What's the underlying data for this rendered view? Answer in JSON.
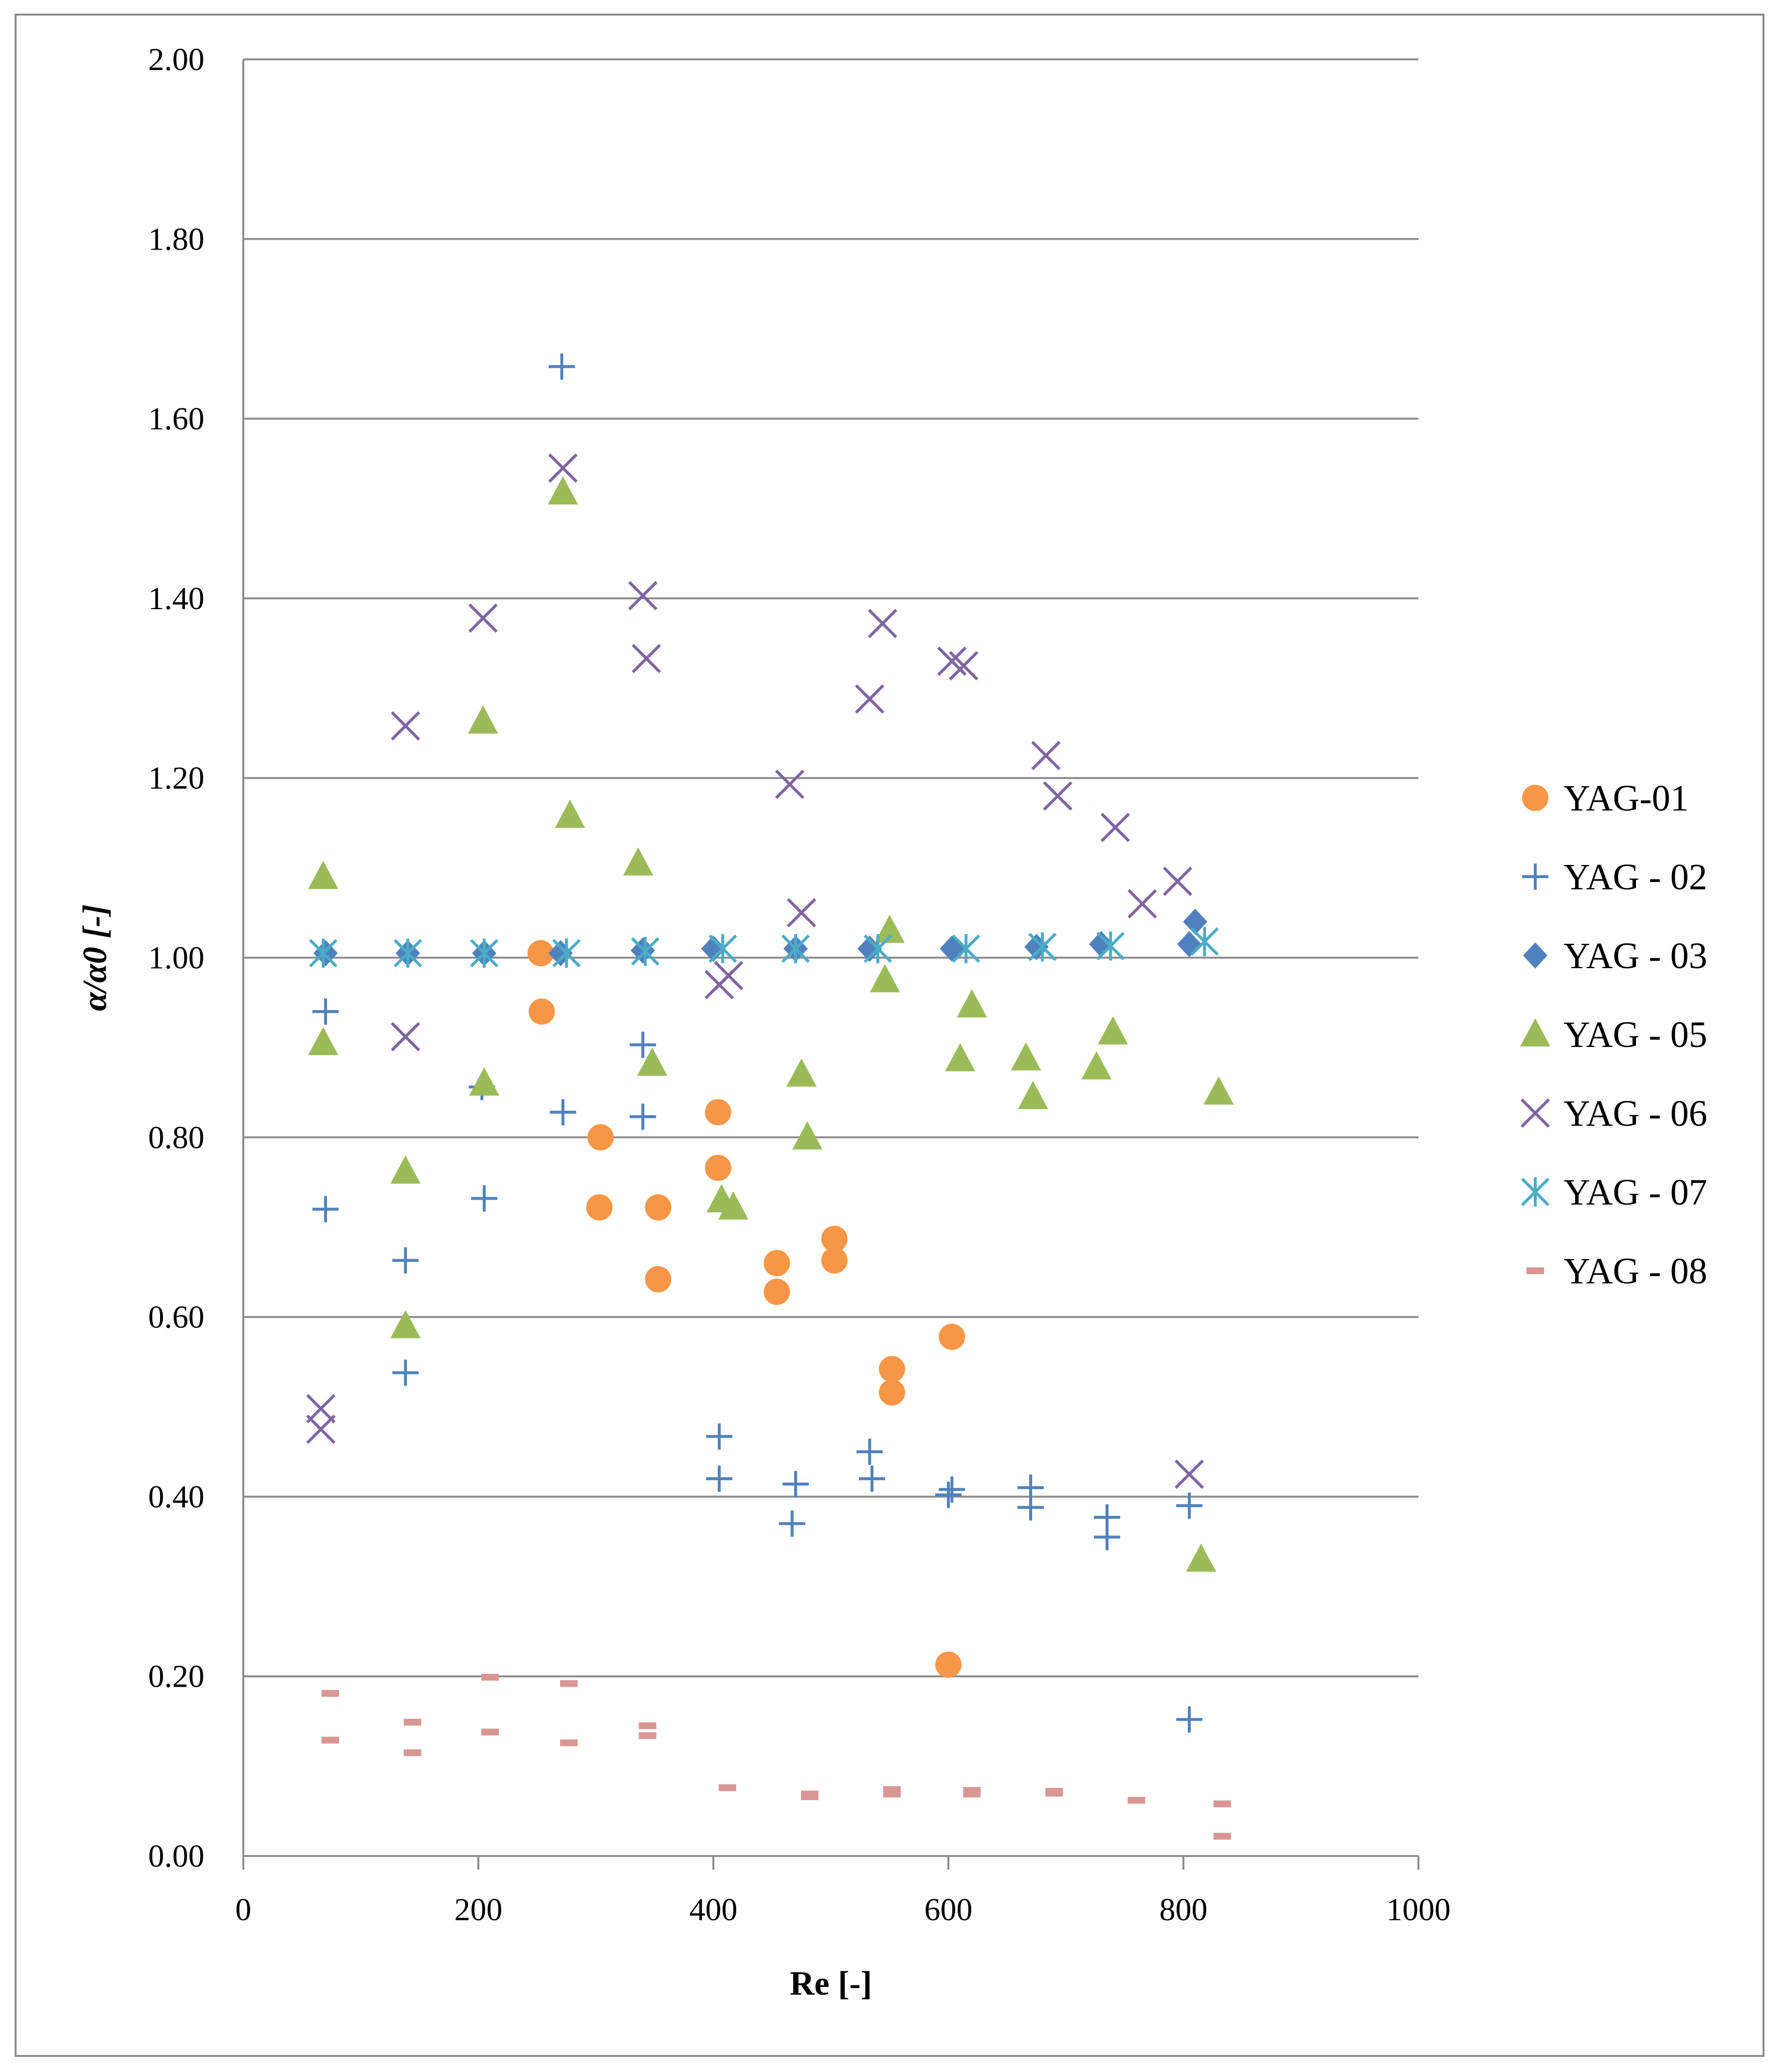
{
  "chart_data": {
    "type": "scatter",
    "title": "",
    "xlabel": "Re [-]",
    "ylabel": "α/α0 [-]",
    "xlim": [
      0,
      1000
    ],
    "ylim": [
      0,
      2.0
    ],
    "x_ticks": [
      "0",
      "200",
      "400",
      "600",
      "800",
      "1000"
    ],
    "y_ticks": [
      "0.00",
      "0.20",
      "0.40",
      "0.60",
      "0.80",
      "1.00",
      "1.20",
      "1.40",
      "1.60",
      "1.80",
      "2.00"
    ],
    "grid": "horizontal",
    "legend_position": "right",
    "series": [
      {
        "name": "YAG-01",
        "marker": "circle",
        "color": "#f79646",
        "points": [
          [
            253,
            1.005
          ],
          [
            254,
            0.94
          ],
          [
            304,
            0.8
          ],
          [
            303,
            0.722
          ],
          [
            353,
            0.722
          ],
          [
            353,
            0.642
          ],
          [
            404,
            0.828
          ],
          [
            404,
            0.766
          ],
          [
            454,
            0.66
          ],
          [
            454,
            0.628
          ],
          [
            503,
            0.687
          ],
          [
            503,
            0.663
          ],
          [
            552,
            0.542
          ],
          [
            552,
            0.516
          ],
          [
            603,
            0.578
          ],
          [
            600,
            0.213
          ]
        ]
      },
      {
        "name": "YAG - 02",
        "marker": "plus",
        "color": "#4f81bd",
        "points": [
          [
            70,
            0.94
          ],
          [
            70,
            0.72
          ],
          [
            138,
            0.663
          ],
          [
            138,
            0.538
          ],
          [
            203,
            0.856
          ],
          [
            205,
            0.732
          ],
          [
            271,
            1.658
          ],
          [
            272,
            0.828
          ],
          [
            340,
            0.903
          ],
          [
            340,
            0.823
          ],
          [
            405,
            0.467
          ],
          [
            405,
            0.42
          ],
          [
            470,
            0.414
          ],
          [
            467,
            0.37
          ],
          [
            533,
            0.45
          ],
          [
            535,
            0.42
          ],
          [
            600,
            0.402
          ],
          [
            603,
            0.408
          ],
          [
            670,
            0.41
          ],
          [
            670,
            0.388
          ],
          [
            735,
            0.377
          ],
          [
            735,
            0.355
          ],
          [
            805,
            0.39
          ],
          [
            805,
            0.152
          ]
        ]
      },
      {
        "name": "YAG - 03",
        "marker": "diamond",
        "color": "#4f81bd",
        "points": [
          [
            70,
            1.005
          ],
          [
            140,
            1.005
          ],
          [
            205,
            1.005
          ],
          [
            270,
            1.005
          ],
          [
            340,
            1.008
          ],
          [
            400,
            1.01
          ],
          [
            470,
            1.01
          ],
          [
            533,
            1.01
          ],
          [
            603,
            1.01
          ],
          [
            675,
            1.012
          ],
          [
            730,
            1.015
          ],
          [
            805,
            1.015
          ],
          [
            810,
            1.04
          ]
        ]
      },
      {
        "name": "YAG - 05",
        "marker": "triangle",
        "color": "#9bbb59",
        "points": [
          [
            68,
            1.09
          ],
          [
            68,
            0.905
          ],
          [
            138,
            0.762
          ],
          [
            138,
            0.59
          ],
          [
            204,
            1.263
          ],
          [
            205,
            0.86
          ],
          [
            272,
            1.518
          ],
          [
            278,
            1.158
          ],
          [
            336,
            1.105
          ],
          [
            348,
            0.882
          ],
          [
            407,
            0.73
          ],
          [
            417,
            0.722
          ],
          [
            475,
            0.87
          ],
          [
            480,
            0.8
          ],
          [
            546,
            0.975
          ],
          [
            550,
            1.03
          ],
          [
            610,
            0.887
          ],
          [
            620,
            0.947
          ],
          [
            666,
            0.888
          ],
          [
            672,
            0.845
          ],
          [
            726,
            0.878
          ],
          [
            740,
            0.917
          ],
          [
            815,
            0.33
          ],
          [
            830,
            0.85
          ]
        ]
      },
      {
        "name": "YAG - 06",
        "marker": "x",
        "color": "#8064a2",
        "points": [
          [
            66,
            0.498
          ],
          [
            66,
            0.475
          ],
          [
            138,
            1.258
          ],
          [
            138,
            0.912
          ],
          [
            204,
            1.378
          ],
          [
            272,
            1.545
          ],
          [
            340,
            1.403
          ],
          [
            343,
            1.333
          ],
          [
            405,
            0.97
          ],
          [
            413,
            0.98
          ],
          [
            465,
            1.193
          ],
          [
            475,
            1.05
          ],
          [
            533,
            1.288
          ],
          [
            544,
            1.372
          ],
          [
            603,
            1.33
          ],
          [
            613,
            1.325
          ],
          [
            683,
            1.225
          ],
          [
            693,
            1.18
          ],
          [
            742,
            1.145
          ],
          [
            765,
            1.06
          ],
          [
            795,
            1.085
          ],
          [
            805,
            0.425
          ]
        ]
      },
      {
        "name": "YAG - 07",
        "marker": "asterisk",
        "color": "#4bacc6",
        "points": [
          [
            68,
            1.005
          ],
          [
            140,
            1.005
          ],
          [
            205,
            1.005
          ],
          [
            275,
            1.005
          ],
          [
            342,
            1.007
          ],
          [
            408,
            1.01
          ],
          [
            470,
            1.01
          ],
          [
            540,
            1.01
          ],
          [
            615,
            1.01
          ],
          [
            680,
            1.012
          ],
          [
            738,
            1.013
          ],
          [
            818,
            1.018
          ]
        ]
      },
      {
        "name": "YAG - 08",
        "marker": "dash",
        "color": "#d99694",
        "points": [
          [
            74,
            0.181
          ],
          [
            74,
            0.129
          ],
          [
            144,
            0.149
          ],
          [
            144,
            0.115
          ],
          [
            210,
            0.199
          ],
          [
            210,
            0.138
          ],
          [
            277,
            0.192
          ],
          [
            277,
            0.126
          ],
          [
            344,
            0.145
          ],
          [
            344,
            0.134
          ],
          [
            412,
            0.076
          ],
          [
            482,
            0.069
          ],
          [
            482,
            0.066
          ],
          [
            552,
            0.074
          ],
          [
            552,
            0.069
          ],
          [
            620,
            0.073
          ],
          [
            620,
            0.069
          ],
          [
            690,
            0.072
          ],
          [
            690,
            0.07
          ],
          [
            760,
            0.062
          ],
          [
            833,
            0.058
          ],
          [
            833,
            0.022
          ]
        ]
      }
    ]
  }
}
